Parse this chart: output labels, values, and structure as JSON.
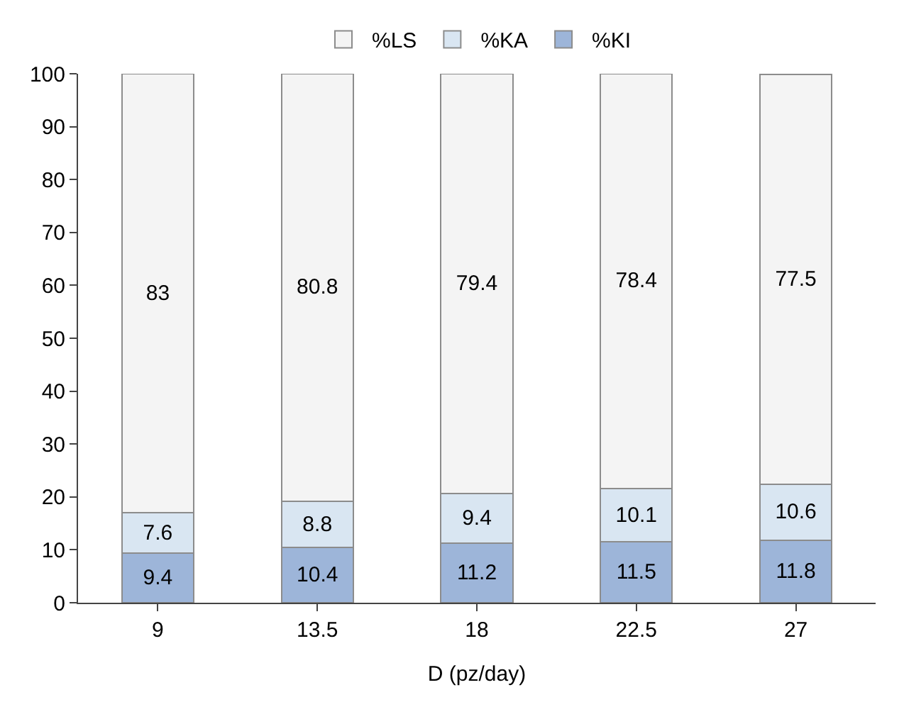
{
  "chart_data": {
    "type": "bar",
    "stacked": true,
    "xlabel": "D (pz/day)",
    "categories": [
      "9",
      "13.5",
      "18",
      "22.5",
      "27"
    ],
    "series": [
      {
        "name": "%KI",
        "color": "#9db5d9",
        "values": [
          9.4,
          10.4,
          11.2,
          11.5,
          11.8
        ]
      },
      {
        "name": "%KA",
        "color": "#d9e6f2",
        "values": [
          7.6,
          8.8,
          9.4,
          10.1,
          10.6
        ]
      },
      {
        "name": "%LS",
        "color": "#f4f4f4",
        "values": [
          83,
          80.8,
          79.4,
          78.4,
          77.5
        ]
      }
    ],
    "ylim": [
      0,
      100
    ],
    "yticks": [
      0,
      10,
      20,
      30,
      40,
      50,
      60,
      70,
      80,
      90,
      100
    ],
    "grid": false,
    "legend": "top",
    "data_labels": true
  }
}
